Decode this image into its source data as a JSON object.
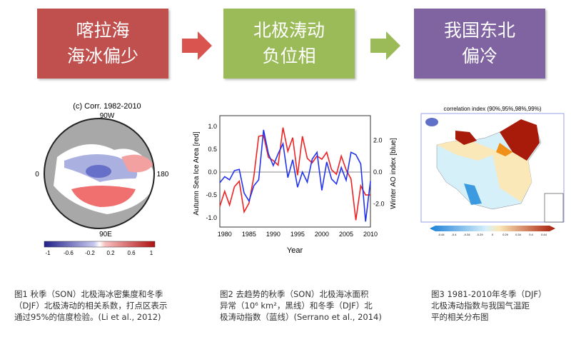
{
  "flow": [
    {
      "lines": [
        "喀拉海",
        "海冰偏少"
      ],
      "color": "#c0504d"
    },
    {
      "lines": [
        "北极涛动",
        "负位相"
      ],
      "color": "#9bbb59"
    },
    {
      "lines": [
        "我国东北",
        "偏冷"
      ],
      "color": "#8064a2"
    }
  ],
  "arrow_colors": [
    "#d9534f",
    "#9bbb59"
  ],
  "fig1": {
    "title": "(c) Corr. 1982-2010",
    "top": "90W",
    "bottom": "90E",
    "left": "0",
    "right": "180",
    "colorbar_ticks": [
      "-1",
      "-0.6",
      "-0.2",
      "0.2",
      "0.6",
      "1"
    ]
  },
  "fig3": {
    "title": "correlation index (90%,95%,98%,99%)",
    "colorbar_ticks": [
      "-0.44",
      "-0.4",
      "-0.34",
      "-0.29",
      "0",
      "0.29",
      "0.34",
      "0.4",
      "0.44"
    ]
  },
  "chart_data": {
    "type": "line",
    "x": [
      1979,
      1980,
      1981,
      1982,
      1983,
      1984,
      1985,
      1986,
      1987,
      1988,
      1989,
      1990,
      1991,
      1992,
      1993,
      1994,
      1995,
      1996,
      1997,
      1998,
      1999,
      2000,
      2001,
      2002,
      2003,
      2004,
      2005,
      2006,
      2007,
      2008,
      2009,
      2010
    ],
    "series": [
      {
        "name": "Autumn Sea Ice Area [red]",
        "color": "#ee2222",
        "axis": "left",
        "values": [
          -0.75,
          -0.42,
          -0.72,
          -0.32,
          -0.2,
          -0.87,
          -0.68,
          -0.1,
          0.78,
          0.8,
          0.32,
          0.25,
          0.15,
          0.97,
          0.45,
          0.75,
          -0.07,
          0.78,
          0.3,
          0.2,
          0.35,
          0.28,
          0.43,
          0.05,
          -0.05,
          0.35,
          0.05,
          -0.15,
          -1.05,
          -0.3,
          -0.5,
          -0.5
        ]
      },
      {
        "name": "Winter AO index [blue]",
        "color": "#2233ee",
        "axis": "right",
        "values": [
          -0.67,
          -0.29,
          -0.49,
          0.09,
          0.17,
          -1.33,
          -1.83,
          -0.87,
          -0.49,
          2.67,
          1.16,
          0.41,
          1.16,
          1.8,
          -0.35,
          0.78,
          -0.96,
          0,
          -0.64,
          0.81,
          1.25,
          -1.16,
          0.64,
          -0.44,
          -0.75,
          0.29,
          -0.52,
          1.25,
          1.1,
          0.52,
          -3.13,
          -0.58
        ]
      }
    ],
    "xlabel": "Year",
    "ylabel": "Autumn Sea Ice Area [red]",
    "y2label": "Winter AO index [blue]",
    "xlim": [
      1979,
      2010
    ],
    "ylim": [
      -1.2,
      1.23
    ],
    "y2lim": [
      -3.48,
      3.57
    ],
    "xticks": [
      "1980",
      "1985",
      "1990",
      "1995",
      "2000",
      "2005",
      "2010"
    ],
    "yticks": [
      "1.0",
      "0.5",
      "0.0",
      "-0.5",
      "-1.0"
    ],
    "y2ticks": [
      "2.0",
      "0.0",
      "-2.0"
    ]
  },
  "captions": [
    [
      "图1 秋季（SON）北极海冰密集度和冬季",
      "（DJF）北极涛动的相关系数，打点区表示",
      "通过95%的信度检验。(Li et al., 2012)"
    ],
    [
      "图2 去趋势的秋季（SON）北极海冰面积",
      "异常（10⁶ km²，黑线）和冬季（DJF）北",
      "极涛动指数（蓝线）(Serrano et al., 2014)"
    ],
    [
      "图3 1981-2010年冬季（DJF）",
      "北极涛动指数与我国气温距",
      "平的相关分布图"
    ]
  ]
}
